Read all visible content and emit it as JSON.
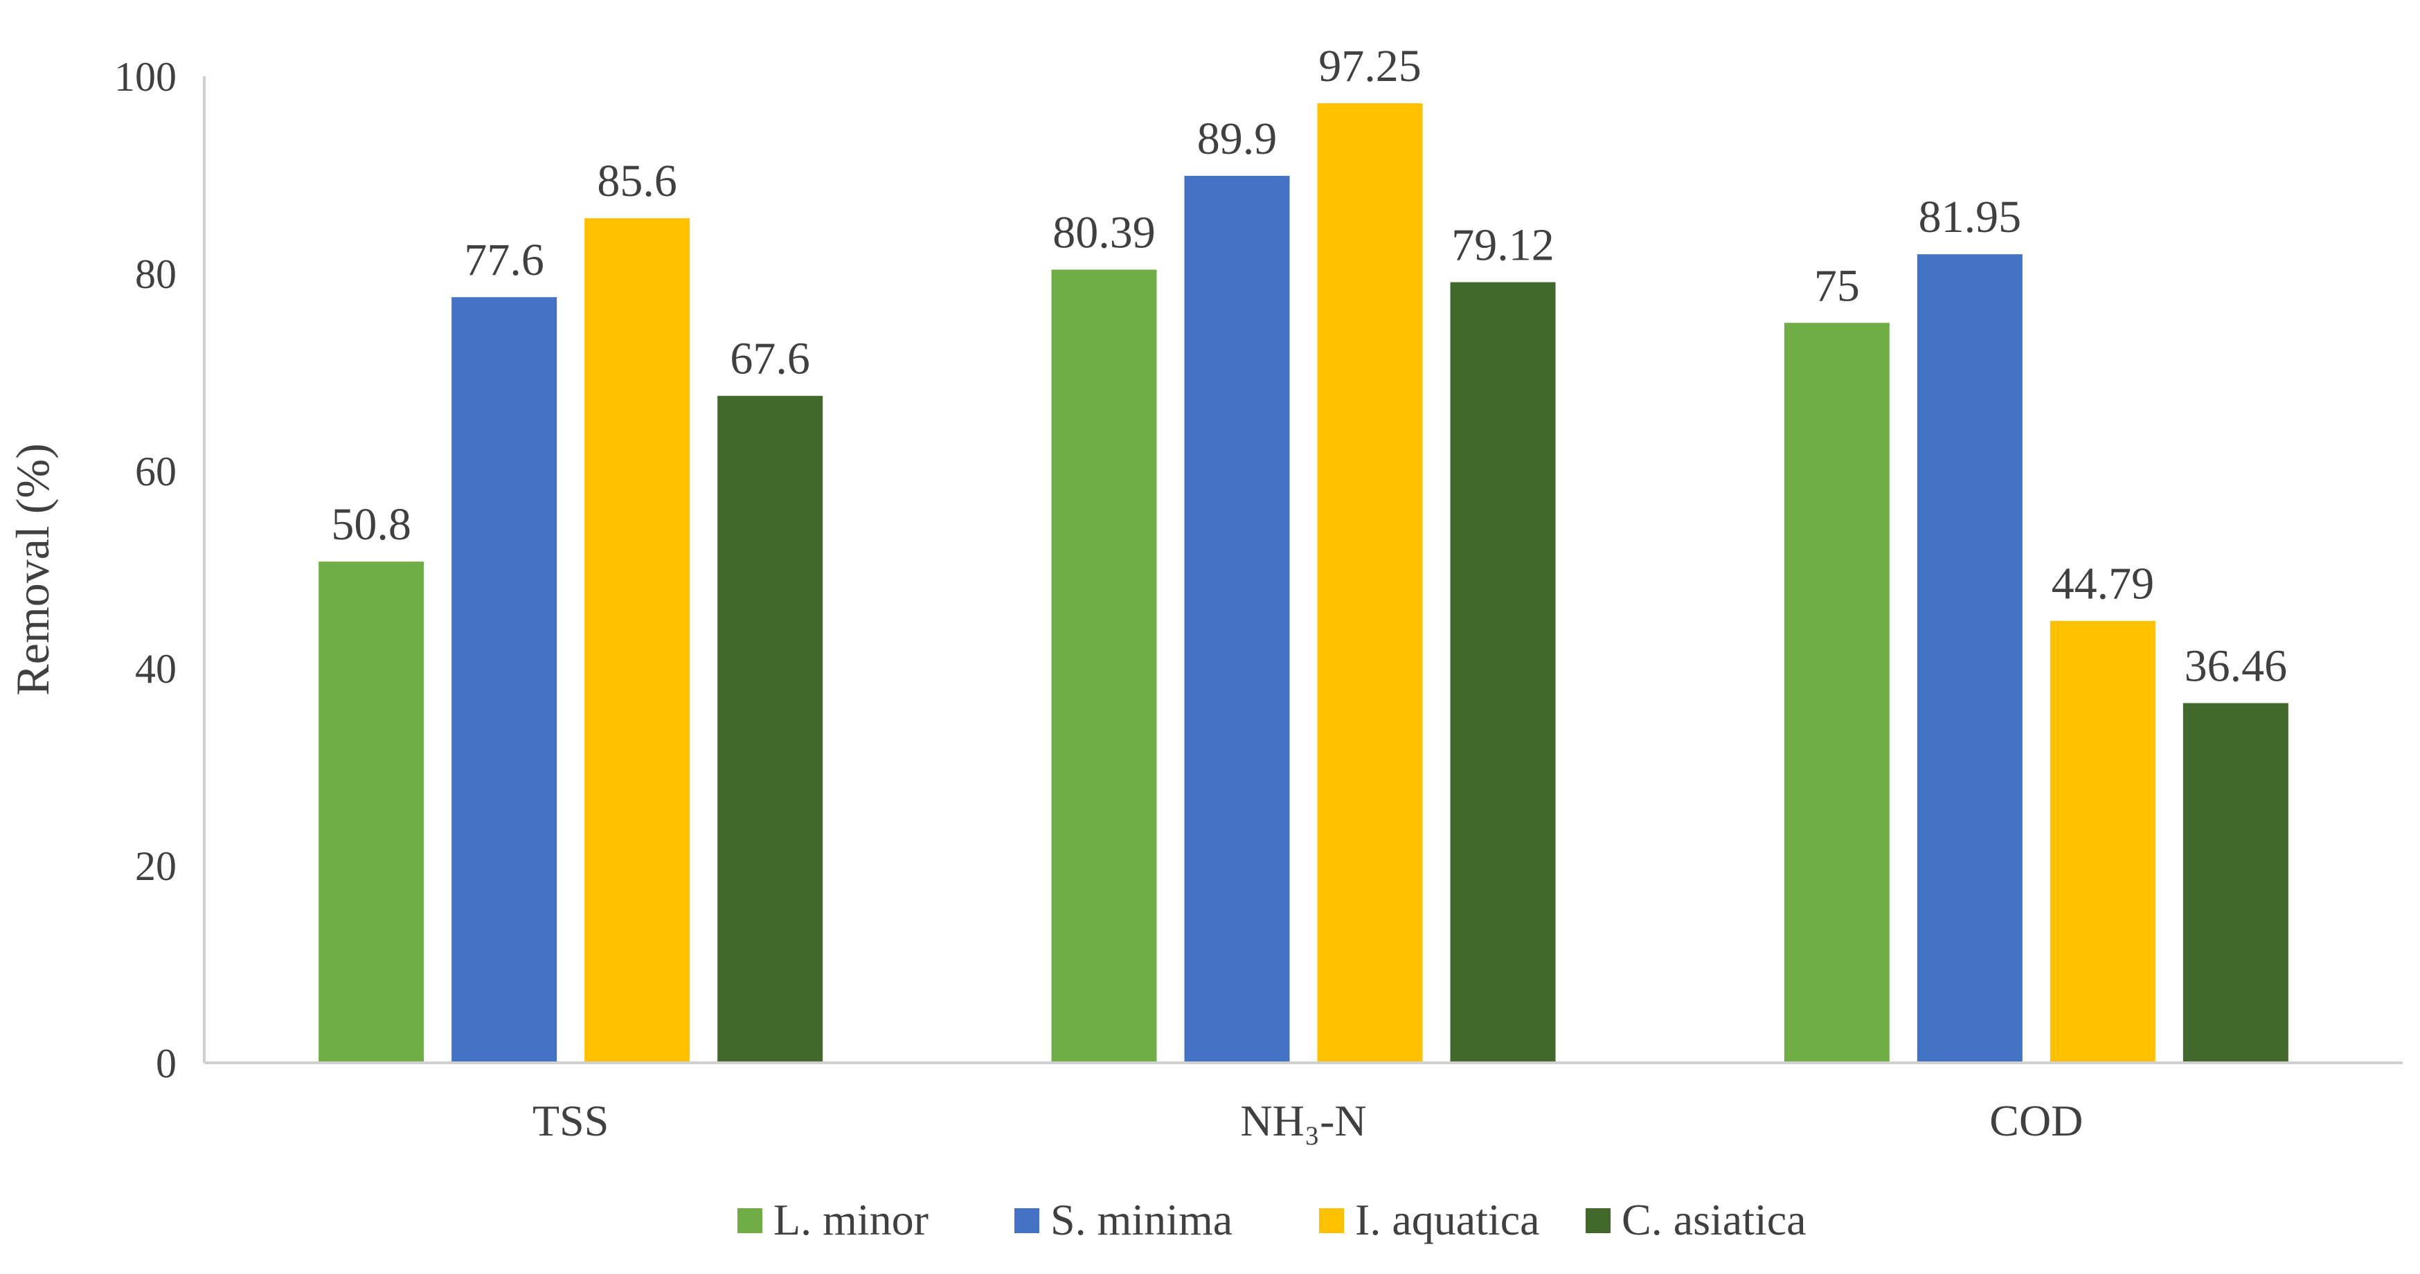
{
  "chart_data": {
    "type": "bar",
    "title": "",
    "xlabel": "",
    "ylabel": "Removal (%)",
    "ylim": [
      0,
      100
    ],
    "yticks": [
      0,
      20,
      40,
      60,
      80,
      100
    ],
    "grid": false,
    "legend_position": "bottom",
    "categories": [
      "TSS",
      "NH₃-N",
      "COD"
    ],
    "series": [
      {
        "name": "L. minor",
        "color": "#70AD47",
        "values": [
          50.8,
          80.39,
          75
        ],
        "labels": [
          "50.8",
          "80.39",
          "75"
        ]
      },
      {
        "name": "S. minima",
        "color": "#4472C4",
        "values": [
          77.6,
          89.9,
          81.95
        ],
        "labels": [
          "77.6",
          "89.9",
          "81.95"
        ]
      },
      {
        "name": "I. aquatica",
        "color": "#FFC000",
        "values": [
          85.6,
          97.25,
          44.79
        ],
        "labels": [
          "85.6",
          "97.25",
          "44.79"
        ]
      },
      {
        "name": "C. asiatica",
        "color": "#43682B",
        "values": [
          67.6,
          79.12,
          36.46
        ],
        "labels": [
          "67.6",
          "79.12",
          "36.46"
        ]
      }
    ]
  }
}
